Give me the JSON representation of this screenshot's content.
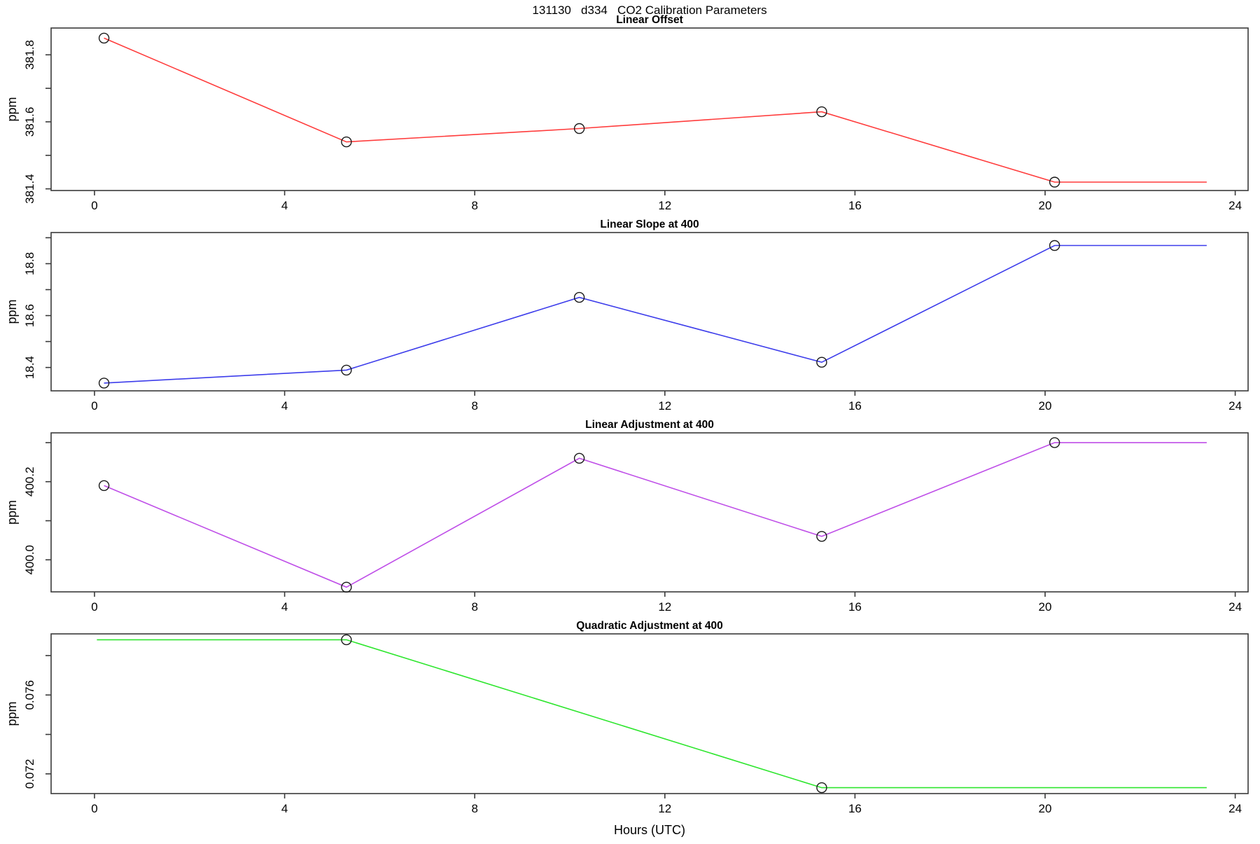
{
  "page_title": "131130   d334   CO2 Calibration Parameters",
  "x_axis_label": "Hours (UTC)",
  "y_axis_unit": "ppm",
  "chart_data": [
    {
      "type": "line",
      "id": "linear-offset",
      "title": "Linear Offset",
      "ylabel": "ppm",
      "color": "#ff3c3c",
      "markers": {
        "x": [
          0.2,
          5.3,
          10.2,
          15.3,
          20.2
        ],
        "y": [
          381.85,
          381.54,
          381.58,
          381.63,
          381.42
        ]
      },
      "line": {
        "x": [
          0.2,
          5.3,
          10.2,
          15.3,
          20.2,
          23.4
        ],
        "y": [
          381.85,
          381.54,
          381.58,
          381.63,
          381.42,
          381.42
        ]
      },
      "ylim": [
        381.395,
        381.88
      ],
      "yticks": [
        381.4,
        381.5,
        381.6,
        381.7,
        381.8
      ],
      "ytick_labels": [
        "381.4",
        "",
        "381.6",
        "",
        "381.8"
      ],
      "xticks": [
        0,
        4,
        8,
        12,
        16,
        20,
        24
      ],
      "grid": false
    },
    {
      "type": "line",
      "id": "linear-slope-at-400",
      "title": "Linear Slope at 400",
      "ylabel": "ppm",
      "color": "#3d3deb",
      "markers": {
        "x": [
          0.2,
          5.3,
          10.2,
          15.3,
          20.2
        ],
        "y": [
          18.34,
          18.39,
          18.67,
          18.42,
          18.87
        ]
      },
      "line": {
        "x": [
          0.2,
          5.3,
          10.2,
          15.3,
          20.2,
          23.4
        ],
        "y": [
          18.34,
          18.39,
          18.67,
          18.42,
          18.87,
          18.87
        ]
      },
      "ylim": [
        18.31,
        18.92
      ],
      "yticks": [
        18.4,
        18.5,
        18.6,
        18.7,
        18.8,
        18.9
      ],
      "ytick_labels": [
        "18.4",
        "",
        "18.6",
        "",
        "18.8",
        ""
      ],
      "xticks": [
        0,
        4,
        8,
        12,
        16,
        20,
        24
      ],
      "grid": false
    },
    {
      "type": "line",
      "id": "linear-adjustment-at-400",
      "title": "Linear Adjustment at 400",
      "ylabel": "ppm",
      "color": "#bf4fe8",
      "markers": {
        "x": [
          0.2,
          5.3,
          10.2,
          15.3,
          20.2
        ],
        "y": [
          400.19,
          399.93,
          400.26,
          400.06,
          400.3
        ]
      },
      "line": {
        "x": [
          0.2,
          5.3,
          10.2,
          15.3,
          20.2,
          23.4
        ],
        "y": [
          400.19,
          399.93,
          400.26,
          400.06,
          400.3,
          400.3
        ]
      },
      "ylim": [
        399.918,
        400.325
      ],
      "yticks": [
        400.0,
        400.1,
        400.2,
        400.3
      ],
      "ytick_labels": [
        "400.0",
        "",
        "400.2",
        ""
      ],
      "xticks": [
        0,
        4,
        8,
        12,
        16,
        20,
        24
      ],
      "grid": false
    },
    {
      "type": "line",
      "id": "quadratic-adjustment-at-400",
      "title": "Quadratic Adjustment at 400",
      "ylabel": "ppm",
      "color": "#2ee62e",
      "markers": {
        "x": [
          5.3,
          15.3
        ],
        "y": [
          0.0788,
          0.0713
        ]
      },
      "line": {
        "x": [
          0.05,
          5.3,
          15.3,
          23.4
        ],
        "y": [
          0.0788,
          0.0788,
          0.0713,
          0.0713
        ]
      },
      "ylim": [
        0.071,
        0.0791
      ],
      "yticks": [
        0.072,
        0.074,
        0.076,
        0.078
      ],
      "ytick_labels": [
        "0.072",
        "",
        "0.076",
        ""
      ],
      "xticks": [
        0,
        4,
        8,
        12,
        16,
        20,
        24
      ],
      "grid": false
    }
  ]
}
